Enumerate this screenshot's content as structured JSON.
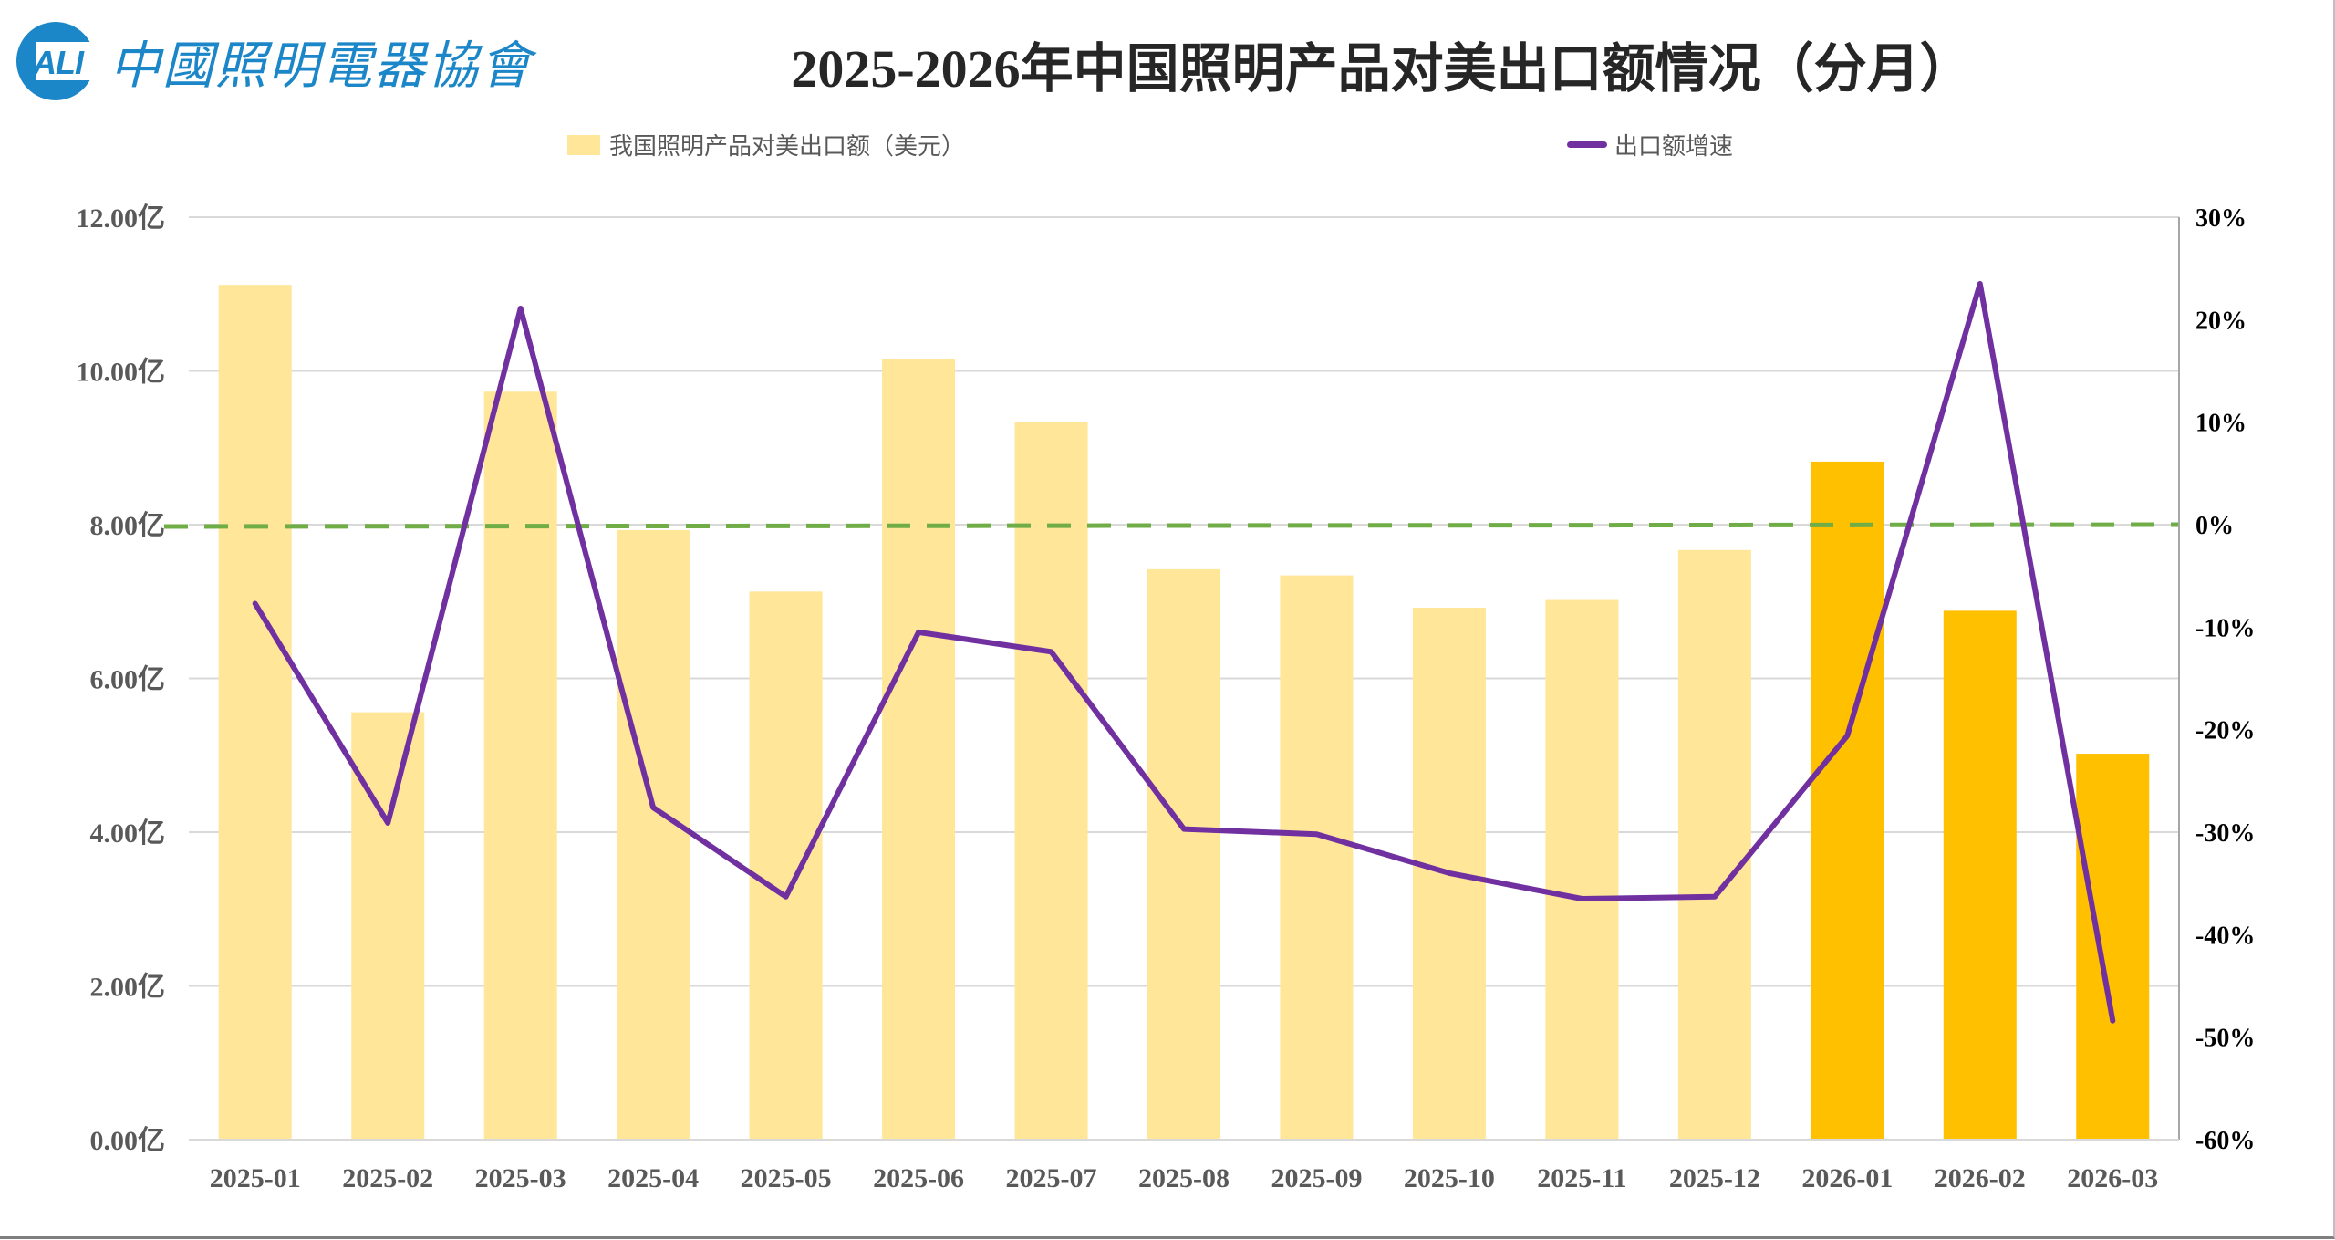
{
  "logo": {
    "mark": "ALI",
    "text": "中國照明電器協會"
  },
  "title": "2025-2026年中国照明产品对美出口额情况（分月）",
  "legend": {
    "bar_label": "我国照明产品对美出口额（美元）",
    "line_label": "出口额增速"
  },
  "colors": {
    "bar_2025": "#FFE699",
    "bar_2026": "#FFC000",
    "line": "#7030A0",
    "zero_line": "#70AD47",
    "grid": "#D9D9D9",
    "axis_text": "#595959"
  },
  "chart_data": {
    "type": "bar+line",
    "title": "2025-2026年中国照明产品对美出口额情况（分月）",
    "categories": [
      "2025-01",
      "2025-02",
      "2025-03",
      "2025-04",
      "2025-05",
      "2025-06",
      "2025-07",
      "2025-08",
      "2025-09",
      "2025-10",
      "2025-11",
      "2025-12",
      "2026-01",
      "2026-02",
      "2026-03"
    ],
    "series": [
      {
        "name": "我国照明产品对美出口额（美元）",
        "type": "bar",
        "axis": "left",
        "unit": "亿",
        "values": [
          11.12,
          5.56,
          9.73,
          7.93,
          7.13,
          10.16,
          9.34,
          7.42,
          7.34,
          6.92,
          7.02,
          7.67,
          8.82,
          6.88,
          5.02
        ]
      },
      {
        "name": "出口额增速",
        "type": "line",
        "axis": "right",
        "unit": "%",
        "values": [
          -7.7,
          -29.1,
          21.1,
          -27.6,
          -36.3,
          -10.5,
          -12.4,
          -29.7,
          -30.2,
          -34.0,
          -36.5,
          -36.3,
          -20.6,
          23.5,
          -48.4
        ]
      }
    ],
    "left_axis": {
      "min": 0,
      "max": 12,
      "step": 2,
      "ticks": [
        "0.00亿",
        "2.00亿",
        "4.00亿",
        "6.00亿",
        "8.00亿",
        "10.00亿",
        "12.00亿"
      ]
    },
    "right_axis": {
      "min": -60,
      "max": 30,
      "step": 10,
      "ticks": [
        "-60%",
        "-50%",
        "-40%",
        "-30%",
        "-20%",
        "-10%",
        "0%",
        "10%",
        "20%",
        "30%"
      ]
    },
    "reference_line": {
      "axis": "right",
      "value": 0,
      "style": "dashed",
      "color": "#70AD47"
    },
    "highlight_categories": [
      "2026-01",
      "2026-02",
      "2026-03"
    ],
    "grid": true,
    "legend_position": "top"
  }
}
